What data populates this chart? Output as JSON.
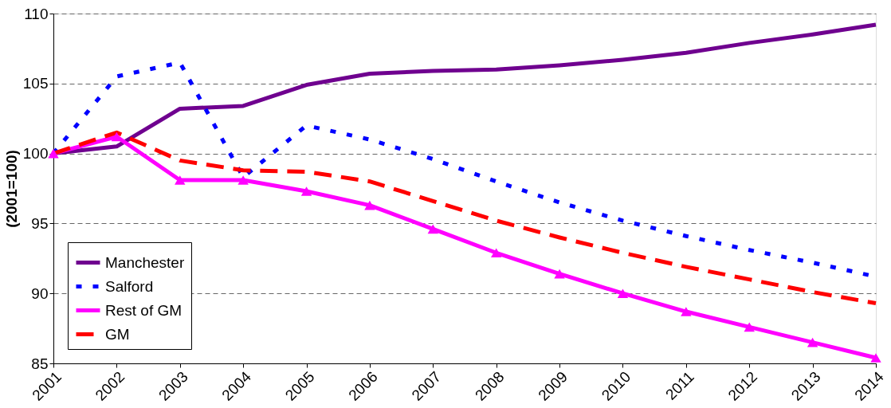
{
  "chart_data": {
    "type": "line",
    "ylabel": "(2001=100)",
    "categories": [
      "2001",
      "2002",
      "2003",
      "2004",
      "2005",
      "2006",
      "2007",
      "2008",
      "2009",
      "2010",
      "2011",
      "2012",
      "2013",
      "2014"
    ],
    "ylim": [
      85,
      110
    ],
    "yticks": [
      85,
      90,
      95,
      100,
      105,
      110
    ],
    "grid": "y",
    "legend": "bottom left",
    "series": [
      {
        "name": "Manchester",
        "color": "#6f008f",
        "line_style": "solid",
        "marker": "none",
        "values": [
          100,
          100.5,
          103.2,
          103.4,
          104.9,
          105.7,
          105.9,
          106.0,
          106.3,
          106.7,
          107.2,
          107.9,
          108.5,
          109.2
        ]
      },
      {
        "name": "Salford",
        "color": "#0000ff",
        "line_style": "dotted",
        "marker": "none",
        "values": [
          100,
          105.5,
          106.5,
          98.3,
          102.0,
          101.0,
          99.6,
          98.0,
          96.5,
          95.2,
          94.1,
          93.1,
          92.2,
          91.2
        ]
      },
      {
        "name": "Rest of GM",
        "color": "#ff00ff",
        "line_style": "solid",
        "marker": "triangle",
        "values": [
          100,
          101.2,
          98.1,
          98.1,
          97.3,
          96.3,
          94.6,
          92.9,
          91.4,
          90.0,
          88.7,
          87.6,
          86.5,
          85.4
        ]
      },
      {
        "name": "GM",
        "color": "#ff0000",
        "line_style": "dashed",
        "marker": "none",
        "values": [
          100,
          101.5,
          99.5,
          98.8,
          98.7,
          98.0,
          96.6,
          95.2,
          94.0,
          92.9,
          91.9,
          91.0,
          90.1,
          89.3
        ]
      }
    ]
  }
}
